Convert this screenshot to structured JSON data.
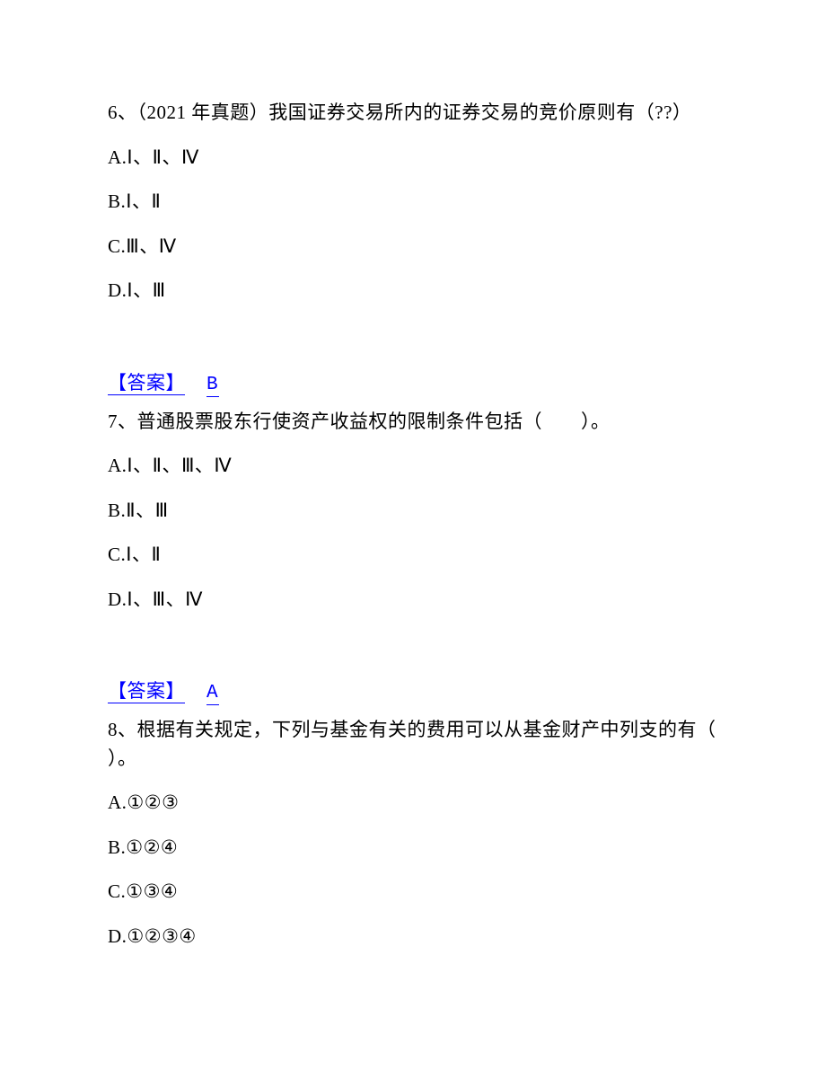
{
  "text_color": "#000000",
  "answer_color": "#0000ff",
  "background_color": "#ffffff",
  "body_fontsize": 21,
  "font_family": "SimSun",
  "questions": [
    {
      "stem": "6、（2021 年真题）我国证券交易所内的证券交易的竞价原则有（??）",
      "options": {
        "A": "A.Ⅰ、Ⅱ、Ⅳ",
        "B": "B.Ⅰ、Ⅱ",
        "C": "C.Ⅲ、Ⅳ",
        "D": "D.Ⅰ、Ⅲ"
      },
      "answer_label": "【答案】",
      "answer_value": " B"
    },
    {
      "stem": "7、普通股票股东行使资产收益权的限制条件包括（　　）。",
      "options": {
        "A": "A.Ⅰ、Ⅱ、Ⅲ、Ⅳ",
        "B": "B.Ⅱ、Ⅲ",
        "C": "C.Ⅰ、Ⅱ",
        "D": "D.Ⅰ、Ⅲ、Ⅳ"
      },
      "answer_label": "【答案】",
      "answer_value": " A"
    },
    {
      "stem": "8、根据有关规定，下列与基金有关的费用可以从基金财产中列支的有（ ）。",
      "options": {
        "A": "A.①②③",
        "B": "B.①②④",
        "C": "C.①③④",
        "D": "D.①②③④"
      },
      "answer_label": null,
      "answer_value": null
    }
  ]
}
